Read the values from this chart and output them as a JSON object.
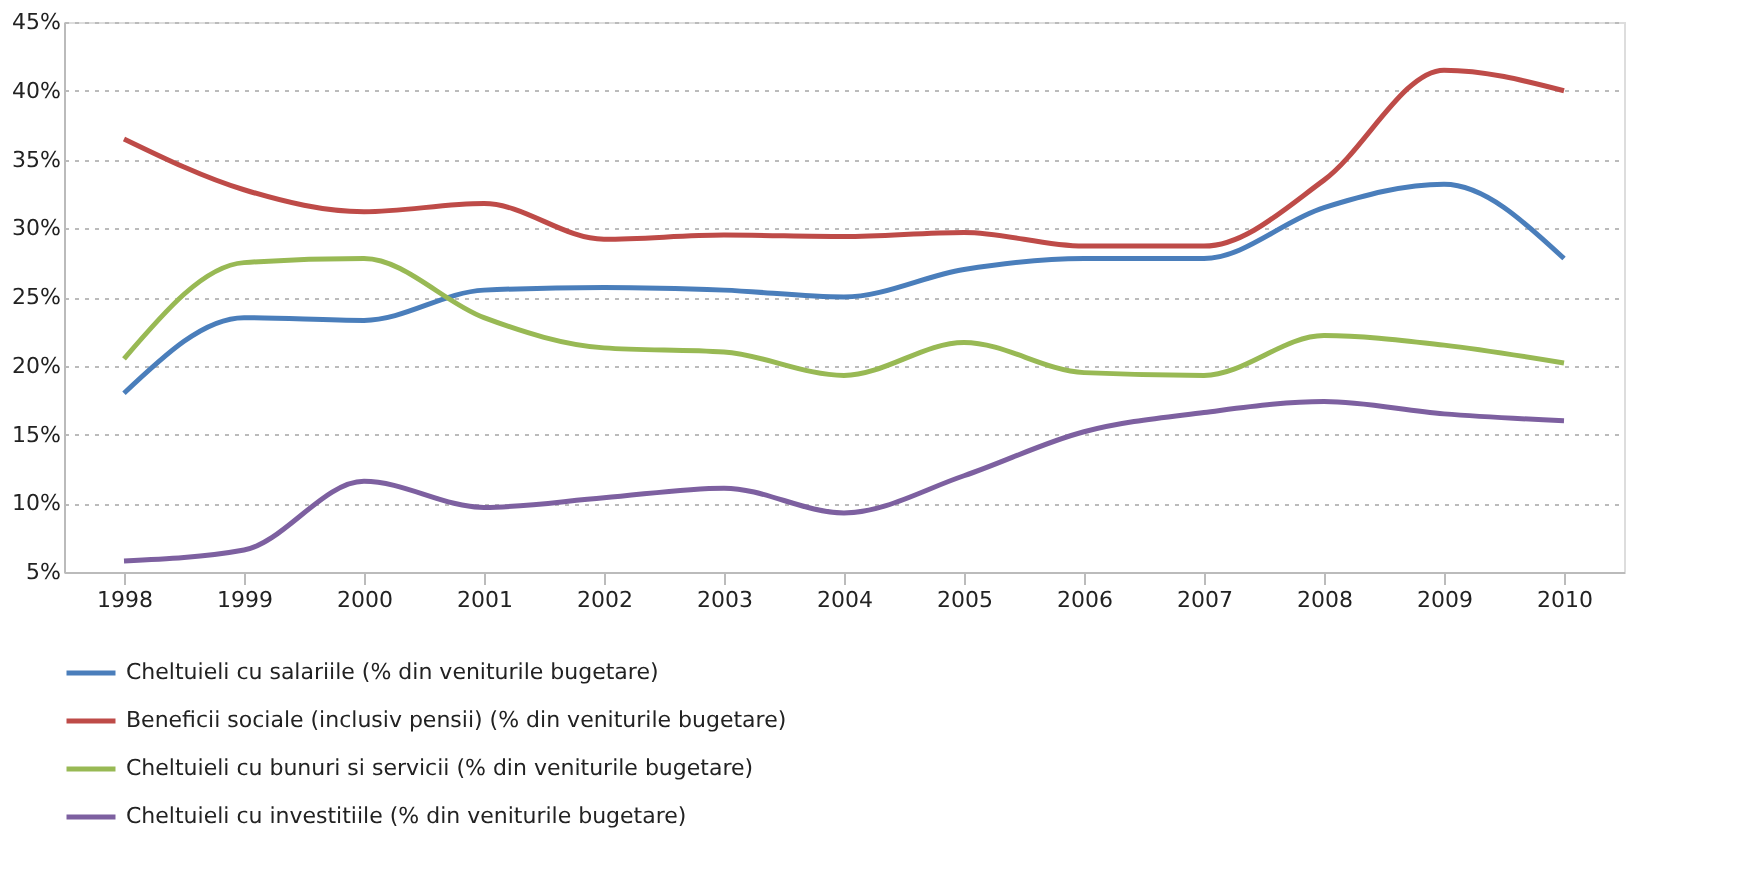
{
  "chart_data": {
    "type": "line",
    "categories": [
      "1998",
      "1999",
      "2000",
      "2001",
      "2002",
      "2003",
      "2004",
      "2005",
      "2006",
      "2007",
      "2008",
      "2009",
      "2010"
    ],
    "series": [
      {
        "name": "Cheltuieli cu salariile (% din veniturile bugetare)",
        "color": "#4a7ebb",
        "values": [
          18,
          23.5,
          23.3,
          25.5,
          25.7,
          25.5,
          25,
          27,
          27.8,
          27.8,
          31.5,
          33.2,
          27.8
        ]
      },
      {
        "name": "Beneficii sociale (inclusiv pensii) (% din veniturile bugetare)",
        "color": "#be4b48",
        "values": [
          36.5,
          32.8,
          31.2,
          31.8,
          29.2,
          29.5,
          29.4,
          29.7,
          28.7,
          28.7,
          33.5,
          41.5,
          40
        ]
      },
      {
        "name": "Cheltuieli cu bunuri si servicii (% din veniturile bugetare)",
        "color": "#98b954",
        "values": [
          20.5,
          27.5,
          27.8,
          23.5,
          21.3,
          21,
          19.3,
          21.7,
          19.5,
          19.3,
          22.2,
          21.5,
          20.2
        ]
      },
      {
        "name": "Cheltuieli cu investitiile (% din veniturile bugetare)",
        "color": "#7d60a0",
        "values": [
          5.8,
          6.6,
          11.6,
          9.7,
          10.4,
          11.1,
          9.3,
          12,
          15.2,
          16.6,
          17.4,
          16.5,
          16
        ]
      }
    ],
    "ylim": [
      5,
      45
    ],
    "yticks": [
      {
        "value": 5,
        "label": "5%"
      },
      {
        "value": 10,
        "label": "10%"
      },
      {
        "value": 15,
        "label": "15%"
      },
      {
        "value": 20,
        "label": "20%"
      },
      {
        "value": 25,
        "label": "25%"
      },
      {
        "value": 30,
        "label": "30%"
      },
      {
        "value": 35,
        "label": "35%"
      },
      {
        "value": 40,
        "label": "40%"
      },
      {
        "value": 45,
        "label": "45%"
      }
    ],
    "grid": "y",
    "legend": "bottom",
    "marker": "none",
    "line_style": "solid"
  }
}
